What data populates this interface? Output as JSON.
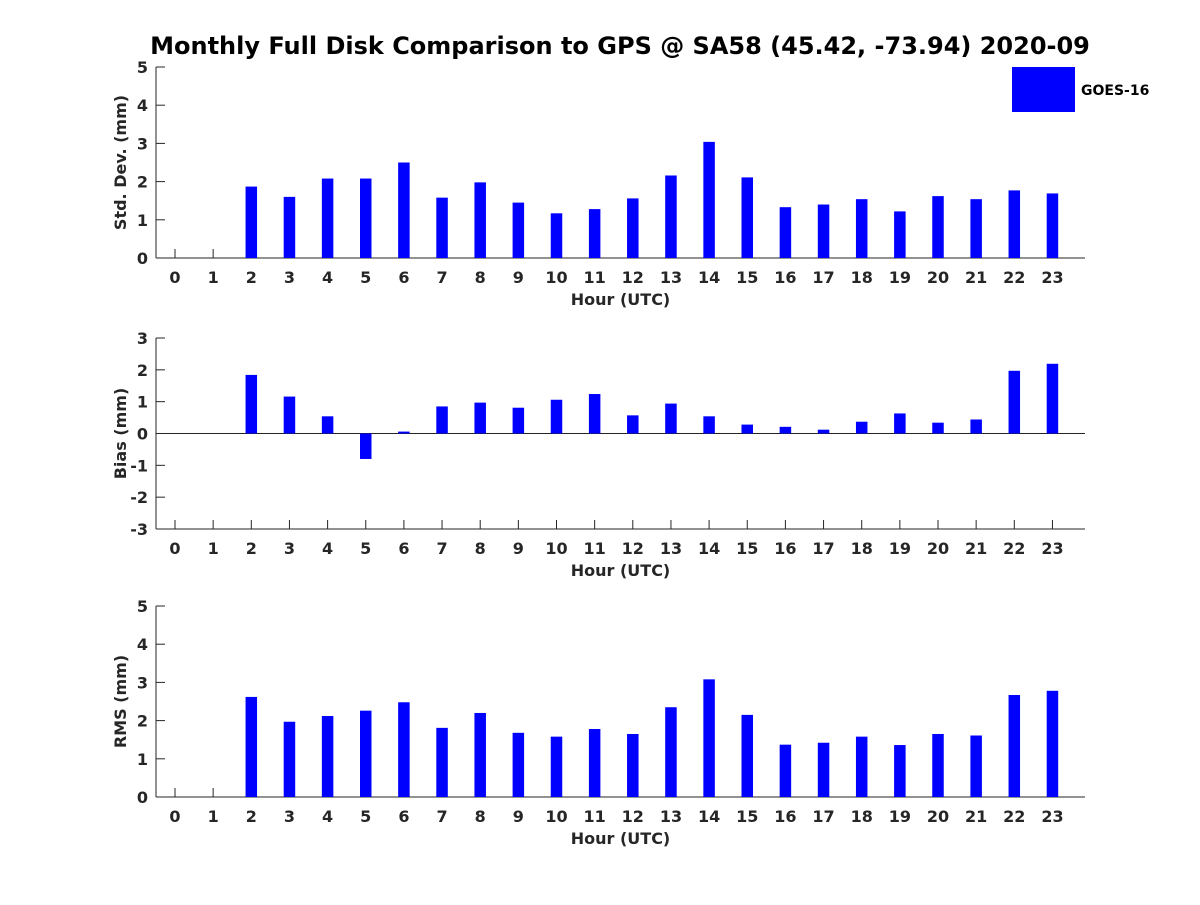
{
  "title": "Monthly Full Disk Comparison to GPS @ SA58 (45.42, -73.94) 2020-09",
  "legend": {
    "label": "GOES-16",
    "color": "#0000ff"
  },
  "chart_data": [
    {
      "type": "bar",
      "name": "std-dev",
      "xlabel": "Hour (UTC)",
      "ylabel": "Std. Dev. (mm)",
      "ylim": [
        0,
        5
      ],
      "yticks": [
        0,
        1,
        2,
        3,
        4,
        5
      ],
      "categories": [
        "0",
        "1",
        "2",
        "3",
        "4",
        "5",
        "6",
        "7",
        "8",
        "9",
        "10",
        "11",
        "12",
        "13",
        "14",
        "15",
        "16",
        "17",
        "18",
        "19",
        "20",
        "21",
        "22",
        "23"
      ],
      "series": [
        {
          "name": "GOES-16",
          "values": [
            null,
            null,
            1.87,
            1.6,
            2.08,
            2.08,
            2.5,
            1.58,
            1.98,
            1.45,
            1.17,
            1.28,
            1.56,
            2.16,
            3.04,
            2.11,
            1.33,
            1.4,
            1.54,
            1.22,
            1.62,
            1.54,
            1.77,
            1.69
          ]
        }
      ]
    },
    {
      "type": "bar",
      "name": "bias",
      "xlabel": "Hour (UTC)",
      "ylabel": "Bias (mm)",
      "ylim": [
        -3,
        3
      ],
      "yticks": [
        -3,
        -2,
        -1,
        0,
        1,
        2,
        3
      ],
      "categories": [
        "0",
        "1",
        "2",
        "3",
        "4",
        "5",
        "6",
        "7",
        "8",
        "9",
        "10",
        "11",
        "12",
        "13",
        "14",
        "15",
        "16",
        "17",
        "18",
        "19",
        "20",
        "21",
        "22",
        "23"
      ],
      "series": [
        {
          "name": "GOES-16",
          "values": [
            null,
            null,
            1.84,
            1.16,
            0.54,
            -0.8,
            0.06,
            0.85,
            0.97,
            0.81,
            1.06,
            1.24,
            0.57,
            0.94,
            0.54,
            0.28,
            0.21,
            0.12,
            0.37,
            0.63,
            0.34,
            0.44,
            1.97,
            2.19
          ]
        }
      ]
    },
    {
      "type": "bar",
      "name": "rms",
      "xlabel": "Hour (UTC)",
      "ylabel": "RMS (mm)",
      "ylim": [
        0,
        5
      ],
      "yticks": [
        0,
        1,
        2,
        3,
        4,
        5
      ],
      "categories": [
        "0",
        "1",
        "2",
        "3",
        "4",
        "5",
        "6",
        "7",
        "8",
        "9",
        "10",
        "11",
        "12",
        "13",
        "14",
        "15",
        "16",
        "17",
        "18",
        "19",
        "20",
        "21",
        "22",
        "23"
      ],
      "series": [
        {
          "name": "GOES-16",
          "values": [
            null,
            null,
            2.62,
            1.97,
            2.12,
            2.26,
            2.48,
            1.81,
            2.2,
            1.68,
            1.58,
            1.78,
            1.65,
            2.35,
            3.08,
            2.15,
            1.37,
            1.42,
            1.58,
            1.36,
            1.65,
            1.61,
            2.67,
            2.78
          ]
        }
      ]
    }
  ]
}
